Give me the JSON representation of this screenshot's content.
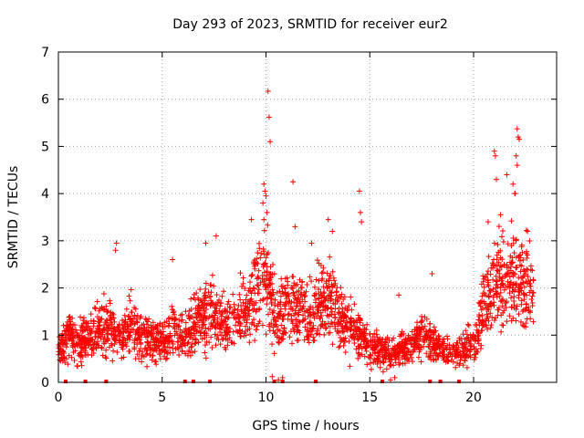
{
  "chart_data": {
    "type": "scatter",
    "title": "Day 293 of 2023, SRMTID for receiver eur2",
    "xlabel": "GPS time / hours",
    "ylabel": "SRMTID / TECUs",
    "xlim": [
      0,
      24
    ],
    "ylim": [
      0,
      7
    ],
    "xticks": [
      0,
      5,
      10,
      15,
      20
    ],
    "yticks": [
      0,
      1,
      2,
      3,
      4,
      5,
      6,
      7
    ],
    "grid": true,
    "marker": "+",
    "color": "#ff0000",
    "profile": [
      [
        0.0,
        0.6
      ],
      [
        0.5,
        1.1
      ],
      [
        1.0,
        0.8
      ],
      [
        1.5,
        1.0
      ],
      [
        2.0,
        1.1
      ],
      [
        2.5,
        1.2
      ],
      [
        3.0,
        0.9
      ],
      [
        3.5,
        1.2
      ],
      [
        4.0,
        0.9
      ],
      [
        4.5,
        0.9
      ],
      [
        5.0,
        0.8
      ],
      [
        5.5,
        1.2
      ],
      [
        6.0,
        0.9
      ],
      [
        6.5,
        1.2
      ],
      [
        7.0,
        1.5
      ],
      [
        7.5,
        1.4
      ],
      [
        8.0,
        1.2
      ],
      [
        8.5,
        1.3
      ],
      [
        9.0,
        1.5
      ],
      [
        9.5,
        1.9
      ],
      [
        10.0,
        2.3
      ],
      [
        10.5,
        1.3
      ],
      [
        11.0,
        1.6
      ],
      [
        11.5,
        1.6
      ],
      [
        12.0,
        1.3
      ],
      [
        12.5,
        1.6
      ],
      [
        13.0,
        1.8
      ],
      [
        13.5,
        1.4
      ],
      [
        14.0,
        1.2
      ],
      [
        14.5,
        1.0
      ],
      [
        15.0,
        0.8
      ],
      [
        15.5,
        0.7
      ],
      [
        16.0,
        0.6
      ],
      [
        16.5,
        0.7
      ],
      [
        17.0,
        0.8
      ],
      [
        17.5,
        1.0
      ],
      [
        18.0,
        0.9
      ],
      [
        18.5,
        0.7
      ],
      [
        19.0,
        0.6
      ],
      [
        19.5,
        0.7
      ],
      [
        20.0,
        0.8
      ],
      [
        20.5,
        1.6
      ],
      [
        21.0,
        2.2
      ],
      [
        21.5,
        2.0
      ],
      [
        22.0,
        2.4
      ],
      [
        22.5,
        2.0
      ],
      [
        22.9,
        1.9
      ]
    ],
    "highlight_points": [
      [
        10.1,
        6.17
      ],
      [
        10.15,
        5.62
      ],
      [
        10.2,
        5.1
      ],
      [
        9.9,
        4.2
      ],
      [
        9.95,
        4.05
      ],
      [
        10.0,
        3.95
      ],
      [
        9.85,
        3.8
      ],
      [
        10.05,
        3.6
      ],
      [
        9.9,
        3.45
      ],
      [
        11.3,
        4.25
      ],
      [
        11.4,
        3.3
      ],
      [
        14.5,
        4.05
      ],
      [
        14.55,
        3.6
      ],
      [
        14.6,
        3.4
      ],
      [
        13.0,
        3.45
      ],
      [
        13.2,
        3.2
      ],
      [
        21.0,
        4.9
      ],
      [
        21.05,
        4.8
      ],
      [
        21.1,
        4.3
      ],
      [
        21.6,
        4.4
      ],
      [
        22.1,
        5.37
      ],
      [
        22.15,
        5.2
      ],
      [
        22.2,
        5.15
      ],
      [
        22.05,
        4.8
      ],
      [
        22.1,
        4.6
      ],
      [
        21.9,
        4.2
      ],
      [
        22.0,
        4.0
      ],
      [
        2.8,
        2.95
      ],
      [
        2.75,
        2.8
      ],
      [
        7.1,
        2.95
      ],
      [
        7.6,
        3.1
      ],
      [
        9.3,
        3.45
      ],
      [
        12.2,
        2.95
      ],
      [
        5.5,
        2.6
      ],
      [
        20.7,
        3.4
      ],
      [
        21.3,
        3.55
      ],
      [
        22.6,
        3.2
      ],
      [
        18.0,
        2.3
      ],
      [
        16.4,
        1.85
      ],
      [
        10.6,
        0.05
      ],
      [
        10.8,
        0.1
      ],
      [
        10.3,
        0.12
      ],
      [
        16.0,
        0.05
      ],
      [
        16.2,
        0.1
      ]
    ],
    "near_zero_marks_x": [
      0.35,
      1.3,
      2.3,
      6.1,
      6.5,
      7.3,
      10.4,
      10.8,
      12.4,
      15.6,
      17.9,
      18.4,
      19.3
    ]
  }
}
